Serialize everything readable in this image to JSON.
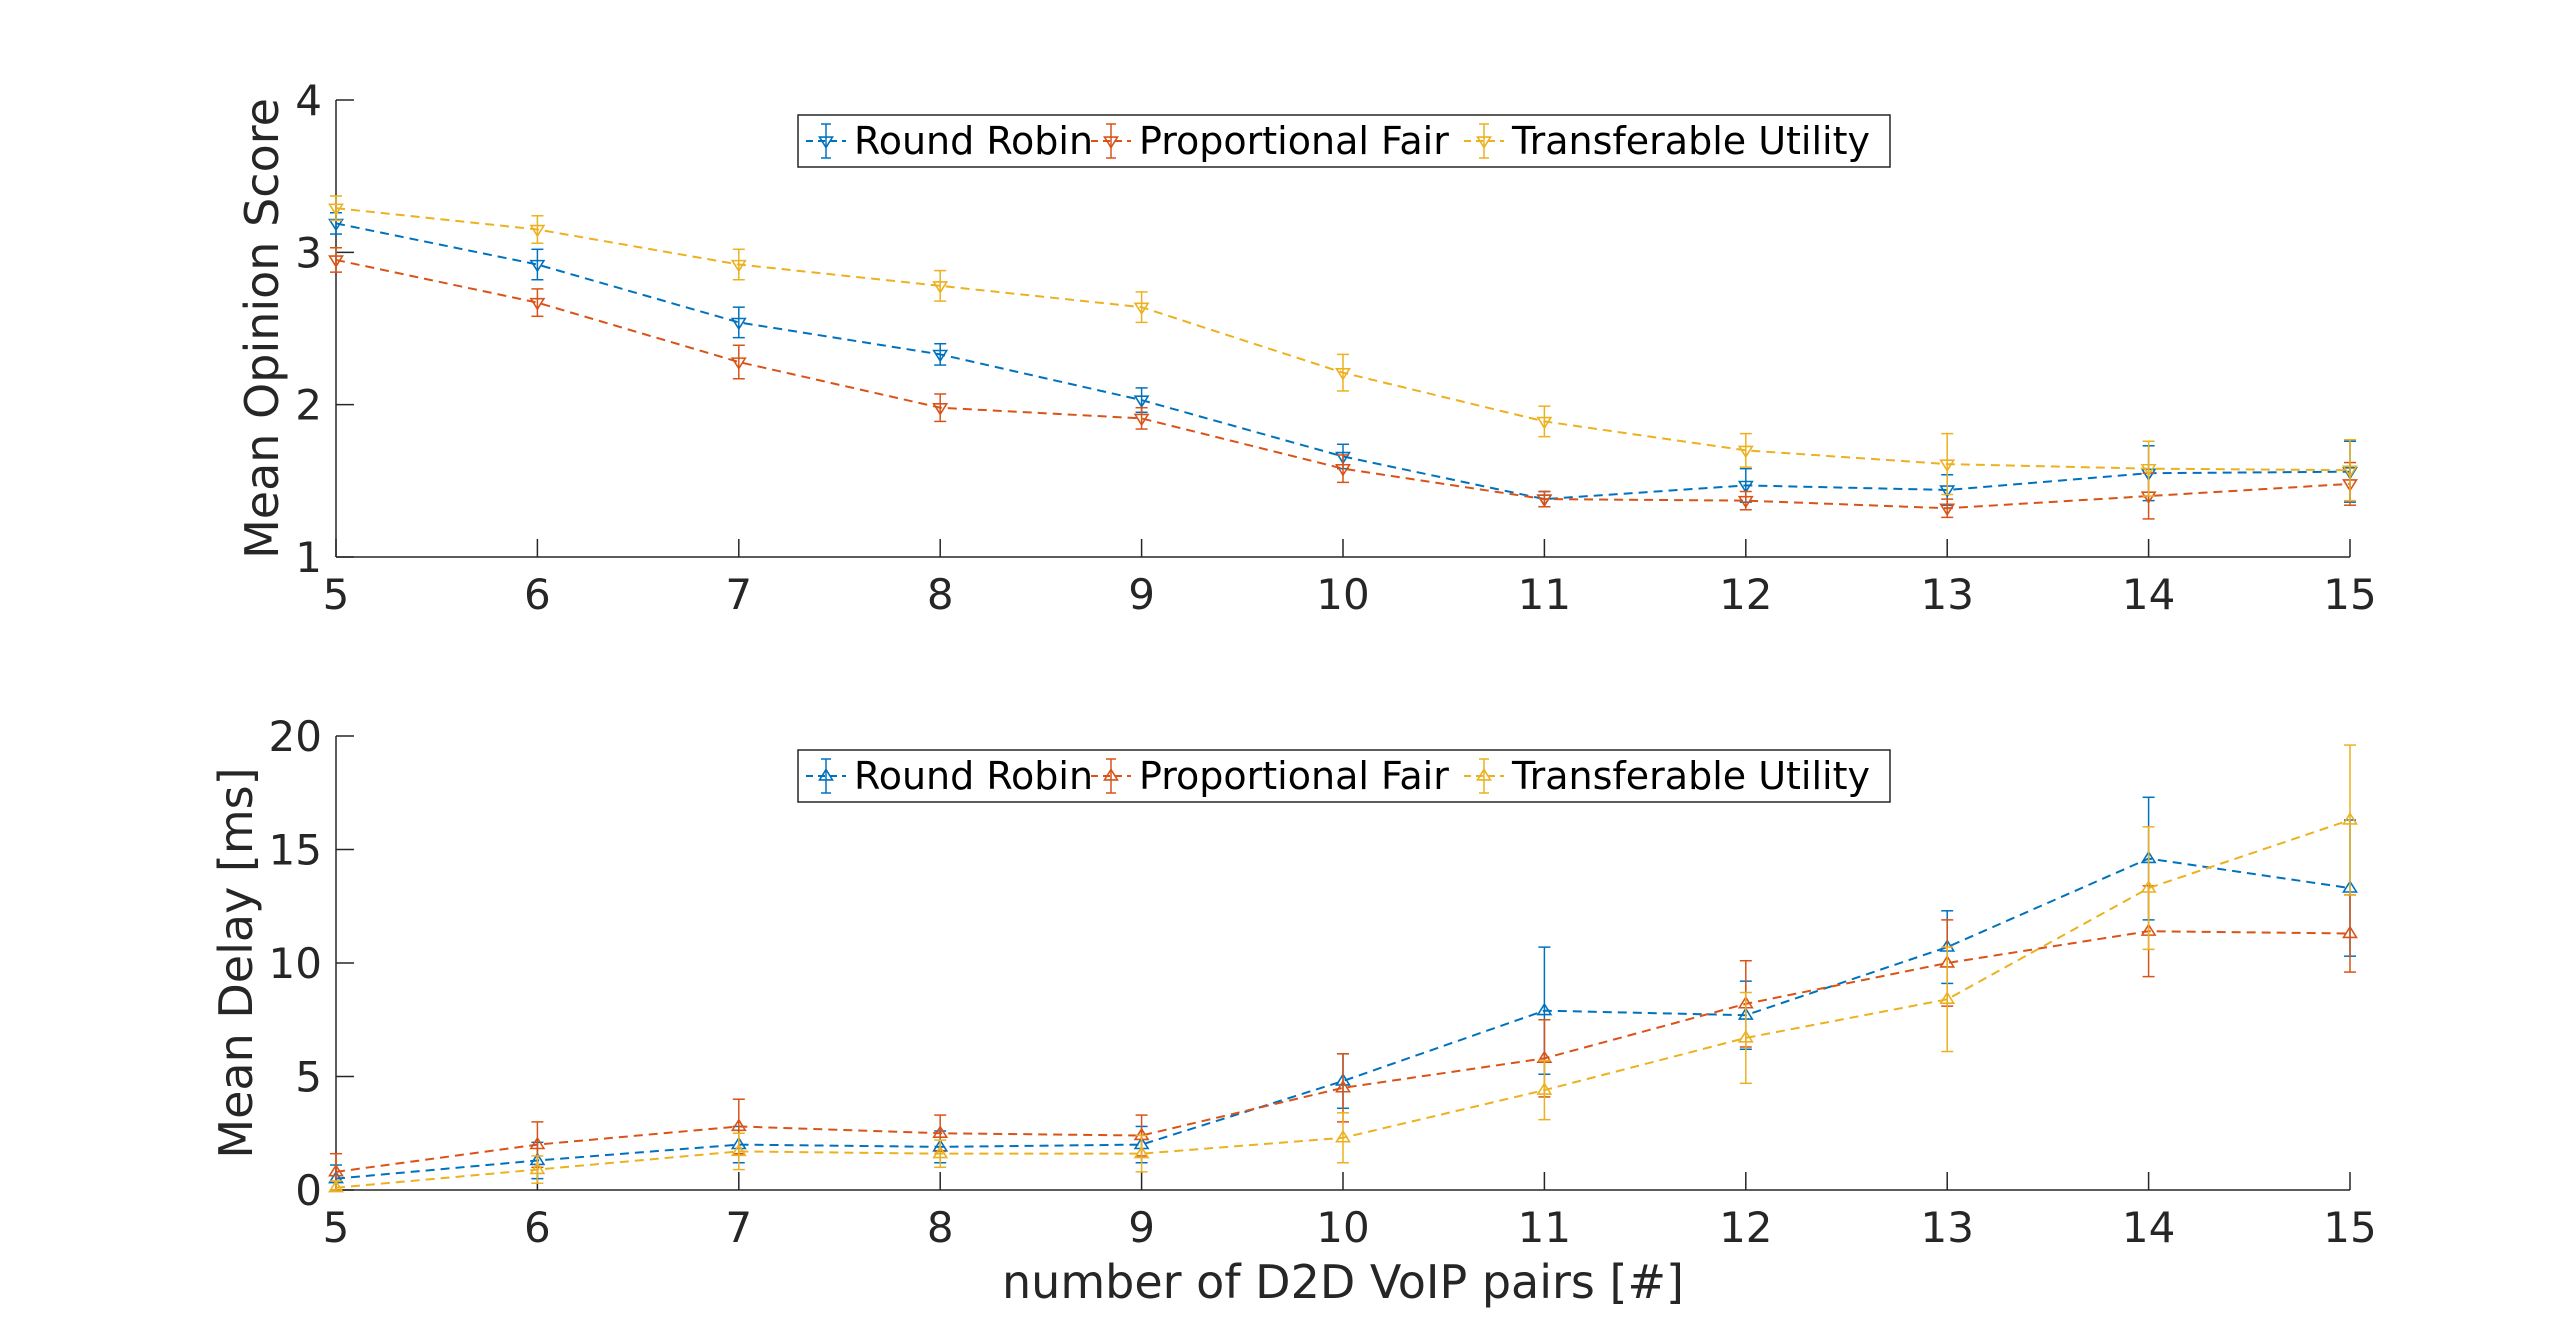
{
  "chart_data": [
    {
      "type": "line",
      "title": "",
      "xlabel": "",
      "ylabel": "Mean Opinion Score",
      "x": [
        5,
        6,
        7,
        8,
        9,
        10,
        11,
        12,
        13,
        14,
        15
      ],
      "xlim": [
        5,
        15
      ],
      "ylim": [
        1,
        4
      ],
      "xticks": [
        "5",
        "6",
        "7",
        "8",
        "9",
        "10",
        "11",
        "12",
        "13",
        "14",
        "15"
      ],
      "yticks": [
        "1",
        "2",
        "3",
        "4"
      ],
      "ytick_values": [
        1,
        2,
        3,
        4
      ],
      "grid": false,
      "marker": "triangle-down",
      "legend": {
        "placement": "top-center",
        "entries": [
          "Round Robin",
          "Proportional Fair",
          "Transferable Utility"
        ]
      },
      "series": [
        {
          "name": "Round Robin",
          "color": "#0072BD",
          "values": [
            3.19,
            2.92,
            2.54,
            2.33,
            2.03,
            1.66,
            1.38,
            1.47,
            1.44,
            1.55,
            1.56
          ],
          "errors": [
            0.07,
            0.1,
            0.1,
            0.07,
            0.08,
            0.08,
            0.05,
            0.11,
            0.1,
            0.18,
            0.2
          ]
        },
        {
          "name": "Proportional Fair",
          "color": "#D95319",
          "values": [
            2.95,
            2.67,
            2.28,
            1.98,
            1.91,
            1.58,
            1.38,
            1.37,
            1.32,
            1.4,
            1.48
          ],
          "errors": [
            0.08,
            0.09,
            0.11,
            0.09,
            0.07,
            0.09,
            0.05,
            0.06,
            0.06,
            0.15,
            0.14
          ]
        },
        {
          "name": "Transferable Utility",
          "color": "#EDB120",
          "values": [
            3.29,
            3.15,
            2.92,
            2.78,
            2.64,
            2.21,
            1.89,
            1.7,
            1.61,
            1.58,
            1.57
          ],
          "errors": [
            0.08,
            0.09,
            0.1,
            0.1,
            0.1,
            0.12,
            0.1,
            0.11,
            0.2,
            0.18,
            0.2
          ]
        }
      ]
    },
    {
      "type": "line",
      "title": "",
      "xlabel": "number of D2D VoIP pairs [#]",
      "ylabel": "Mean Delay [ms]",
      "x": [
        5,
        6,
        7,
        8,
        9,
        10,
        11,
        12,
        13,
        14,
        15
      ],
      "xlim": [
        5,
        15
      ],
      "ylim": [
        0,
        20
      ],
      "xticks": [
        "5",
        "6",
        "7",
        "8",
        "9",
        "10",
        "11",
        "12",
        "13",
        "14",
        "15"
      ],
      "yticks": [
        "0",
        "5",
        "10",
        "15",
        "20"
      ],
      "ytick_values": [
        0,
        5,
        10,
        15,
        20
      ],
      "grid": false,
      "marker": "triangle-up",
      "legend": {
        "placement": "top-center",
        "entries": [
          "Round Robin",
          "Proportional Fair",
          "Transferable Utility"
        ]
      },
      "series": [
        {
          "name": "Round Robin",
          "color": "#0072BD",
          "values": [
            0.5,
            1.3,
            2.0,
            1.9,
            2.0,
            4.8,
            7.9,
            7.7,
            10.7,
            14.6,
            13.3
          ],
          "errors": [
            0.6,
            0.8,
            0.8,
            0.7,
            0.8,
            1.2,
            2.8,
            1.5,
            1.6,
            2.7,
            3.0
          ]
        },
        {
          "name": "Proportional Fair",
          "color": "#D95319",
          "values": [
            0.8,
            2.0,
            2.8,
            2.5,
            2.4,
            4.5,
            5.8,
            8.2,
            10.0,
            11.4,
            11.3
          ],
          "errors": [
            0.8,
            1.0,
            1.2,
            0.8,
            0.9,
            1.5,
            1.7,
            1.9,
            1.9,
            2.0,
            1.7
          ]
        },
        {
          "name": "Transferable Utility",
          "color": "#EDB120",
          "values": [
            0.1,
            0.9,
            1.7,
            1.6,
            1.6,
            2.3,
            4.4,
            6.7,
            8.4,
            13.3,
            16.3
          ],
          "errors": [
            0.3,
            0.6,
            0.8,
            0.6,
            0.8,
            1.1,
            1.3,
            2.0,
            2.3,
            2.7,
            3.3
          ]
        }
      ]
    }
  ]
}
